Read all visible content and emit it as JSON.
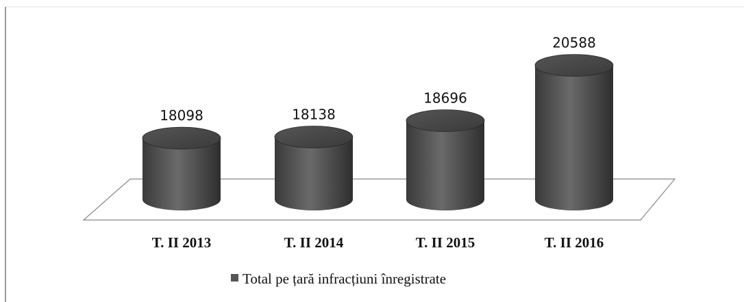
{
  "chart_data": {
    "type": "bar",
    "categories": [
      "T. II 2013",
      "T. II 2014",
      "T. II 2015",
      "T. II 2016"
    ],
    "series": [
      {
        "name": "Total pe țară infracțiuni înregistrate",
        "color": "#555555",
        "values": [
          18098,
          18138,
          18696,
          20588
        ]
      }
    ],
    "ylim": [
      16000,
      21000
    ]
  }
}
